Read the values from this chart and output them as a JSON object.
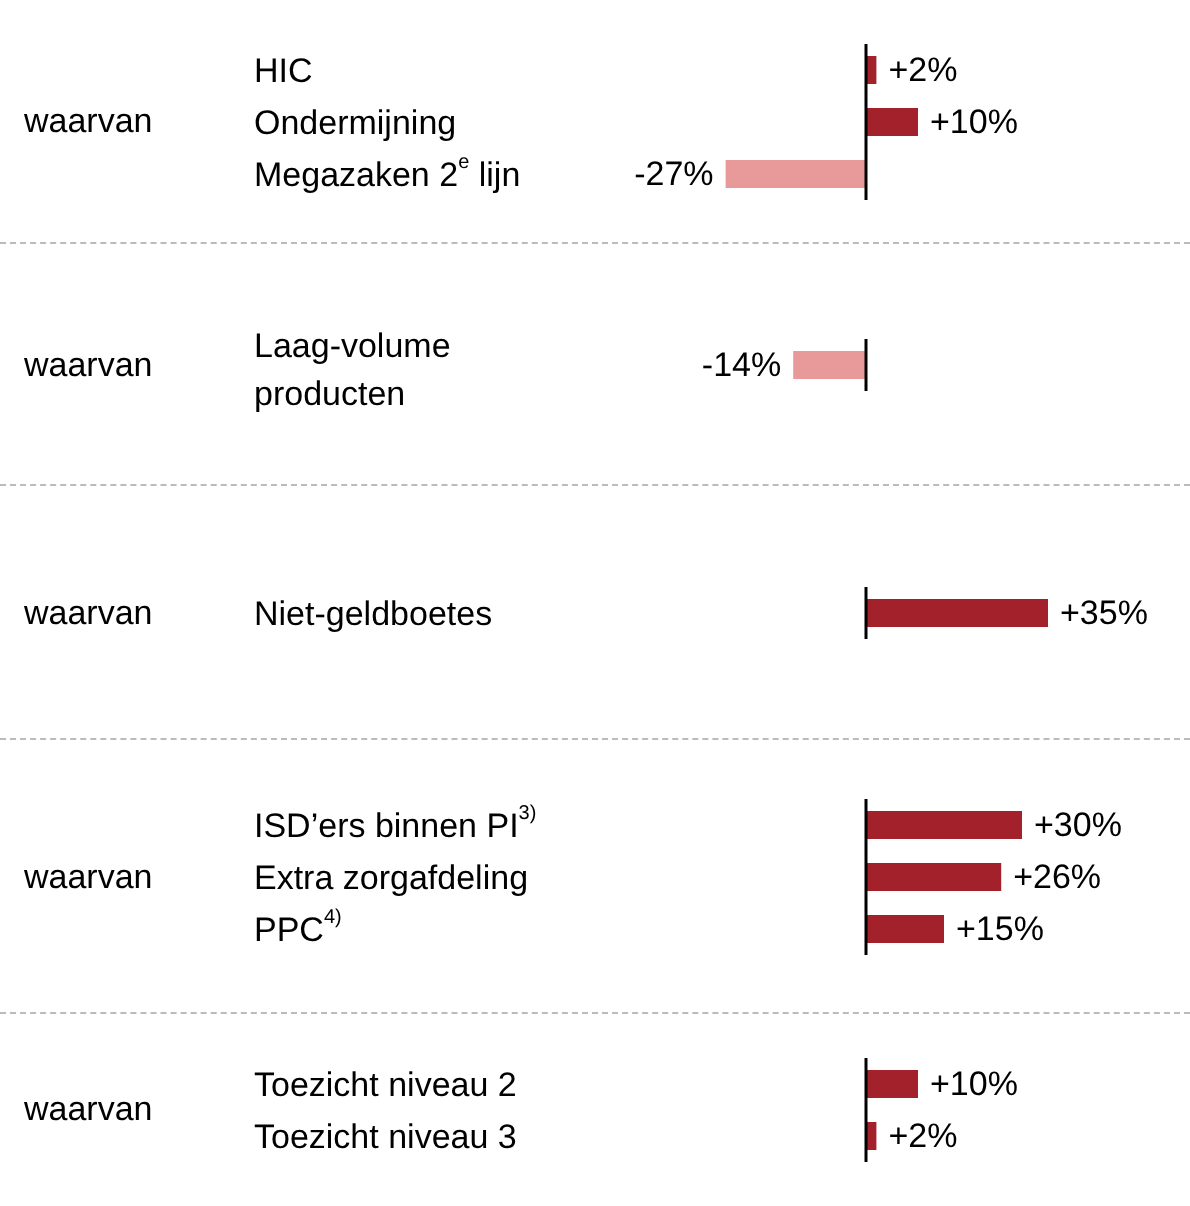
{
  "chart_data": [
    {
      "type": "bar",
      "orientation": "horizontal",
      "categories": [
        "HIC",
        "Ondermijning",
        "Megazaken 2$^{e}$ lijn"
      ],
      "values": [
        2,
        10,
        -27
      ],
      "colors": [
        "#a3212a",
        "#a3212a",
        "#e89a9b"
      ],
      "value_labels": [
        "+2%",
        "+10%",
        "-27%"
      ],
      "tick_labels": false,
      "annotations": [
        "waarvan"
      ]
    },
    {
      "type": "bar",
      "orientation": "horizontal",
      "categories": [
        "Laag-volume producten"
      ],
      "values": [
        -14
      ],
      "colors": [
        "#e89a9b"
      ],
      "value_labels": [
        "-14%"
      ],
      "tick_labels": false,
      "annotations": [
        "waarvan"
      ]
    },
    {
      "type": "bar",
      "orientation": "horizontal",
      "categories": [
        "Niet-geldboetes"
      ],
      "values": [
        35
      ],
      "colors": [
        "#a3212a"
      ],
      "value_labels": [
        "+35%"
      ],
      "tick_labels": false,
      "annotations": [
        "waarvan"
      ]
    },
    {
      "type": "bar",
      "orientation": "horizontal",
      "categories": [
        "ISD’ers binnen PI$^{3)}$",
        "Extra zorgafdeling",
        "PPC$^{4)}$"
      ],
      "values": [
        30,
        26,
        15
      ],
      "colors": [
        "#a3212a",
        "#a3212a",
        "#a3212a"
      ],
      "value_labels": [
        "+30%",
        "+26%",
        "+15%"
      ],
      "tick_labels": false,
      "annotations": [
        "waarvan"
      ]
    },
    {
      "type": "bar",
      "orientation": "horizontal",
      "categories": [
        "Toezicht niveau 2",
        "Toezicht niveau 3"
      ],
      "values": [
        10,
        2
      ],
      "colors": [
        "#a3212a",
        "#a3212a"
      ],
      "value_labels": [
        "+10%",
        "+2%"
      ],
      "tick_labels": false,
      "annotations": [
        "waarvan"
      ]
    }
  ]
}
